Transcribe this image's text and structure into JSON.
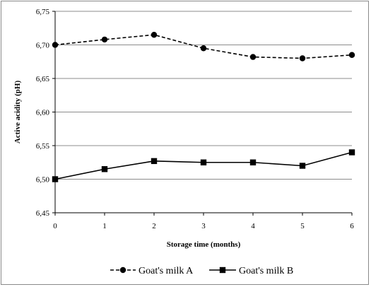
{
  "chart_data": {
    "type": "line",
    "x": [
      0,
      1,
      2,
      3,
      4,
      5,
      6
    ],
    "x_tick_labels": [
      "0",
      "1",
      "2",
      "3",
      "4",
      "5",
      "6"
    ],
    "xlabel": "Storage time (months)",
    "ylabel": "Active acidity (pH)",
    "ylim": [
      6.45,
      6.75
    ],
    "y_ticks": [
      6.45,
      6.5,
      6.55,
      6.6,
      6.65,
      6.7,
      6.75
    ],
    "y_tick_labels": [
      "6,45",
      "6,50",
      "6,55",
      "6,60",
      "6,65",
      "6,70",
      "6,75"
    ],
    "grid": true,
    "legend_position": "bottom",
    "series": [
      {
        "name": "Goat's milk A",
        "values": [
          6.7,
          6.708,
          6.715,
          6.695,
          6.682,
          6.68,
          6.685
        ],
        "line_style": "dashed",
        "marker": "circle",
        "color": "#000000"
      },
      {
        "name": "Goat's milk B",
        "values": [
          6.5,
          6.515,
          6.527,
          6.525,
          6.525,
          6.52,
          6.54
        ],
        "line_style": "solid",
        "marker": "square",
        "color": "#000000"
      }
    ]
  }
}
